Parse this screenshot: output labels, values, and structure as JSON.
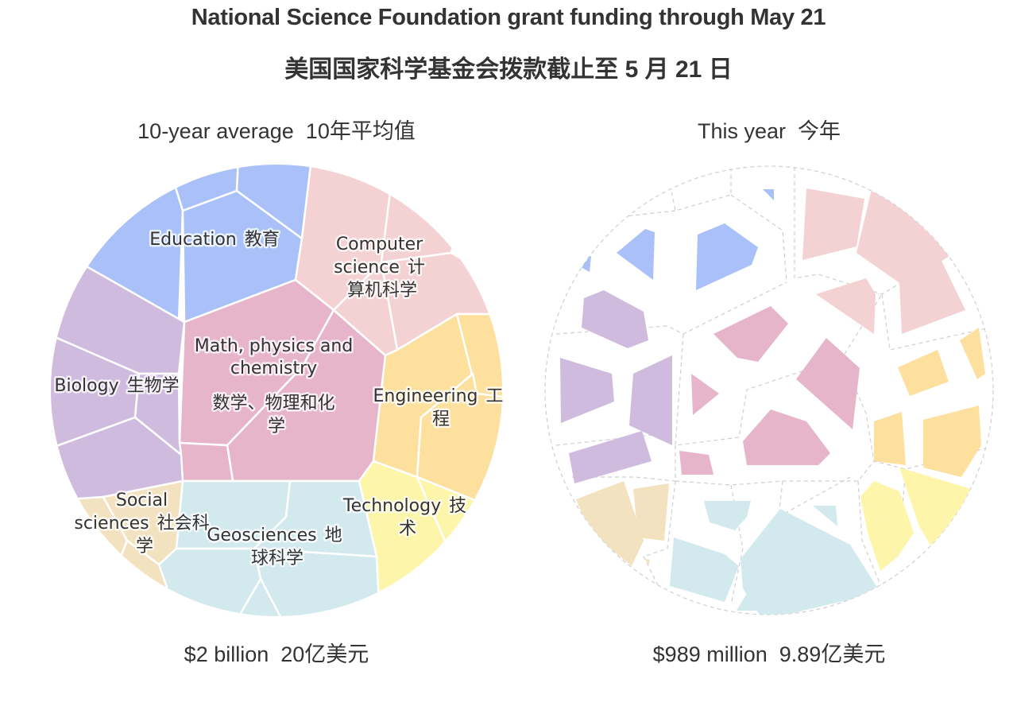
{
  "header": {
    "title": "National Science Foundation grant funding through May 21",
    "title_zh": "美国国家科学基金会拨款截止至 5 月 21 日"
  },
  "colors": {
    "education": "#a9c1f8",
    "computer_science": "#f4d1d3",
    "math_physics_chemistry": "#e6b5c9",
    "biology": "#cfbbdd",
    "engineering": "#fde09e",
    "technology": "#fdf5aa",
    "social_sciences": "#f2e2c0",
    "geosciences": "#d2eaee"
  },
  "left": {
    "heading": "10-year average",
    "heading_zh": "10年平均值",
    "total": "$2 billion",
    "total_zh": "20亿美元",
    "labels": {
      "education": "Education",
      "education_zh": "教育",
      "cs_line1": "Computer",
      "cs_line2": "science",
      "cs_zh1": "计",
      "cs_zh2": "算机科学",
      "math_line1": "Math, physics and",
      "math_line2": "chemistry",
      "math_zh1": "数学、物理和化",
      "math_zh2": "学",
      "biology": "Biology",
      "biology_zh": "生物学",
      "engineering": "Engineering",
      "engineering_zh1": "工",
      "engineering_zh2": "程",
      "technology": "Technology",
      "technology_zh1": "技",
      "technology_zh2": "术",
      "social_line1": "Social",
      "social_line2": "sciences",
      "social_zh1": "社会科",
      "social_zh2": "学",
      "geo": "Geosciences",
      "geo_zh1": "地",
      "geo_zh2": "球科学"
    }
  },
  "right": {
    "heading": "This year",
    "heading_zh": "今年",
    "total": "$989 million",
    "total_zh": "9.89亿美元"
  }
}
